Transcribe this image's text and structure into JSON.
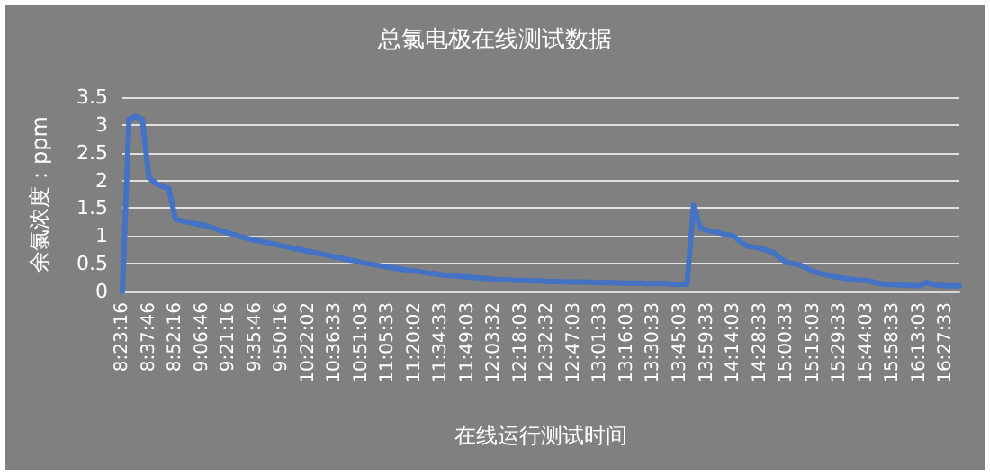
{
  "chart_data": {
    "type": "line",
    "title": "总氯电极在线测试数据",
    "xlabel": "在线运行测试时间",
    "ylabel": "余氯浓度：ppm",
    "categories": [
      "8:23:16",
      null,
      null,
      null,
      "8:37:46",
      null,
      null,
      null,
      "8:52:16",
      null,
      null,
      null,
      "9:06:46",
      null,
      null,
      null,
      "9:21:16",
      null,
      null,
      null,
      "9:35:46",
      null,
      null,
      null,
      "9:50:16",
      null,
      null,
      null,
      "10:22:02",
      null,
      null,
      null,
      "10:36:33",
      null,
      null,
      null,
      "10:51:03",
      null,
      null,
      null,
      "11:05:33",
      null,
      null,
      null,
      "11:20:02",
      null,
      null,
      null,
      "11:34:33",
      null,
      null,
      null,
      "11:49:03",
      null,
      null,
      null,
      "12:03:32",
      null,
      null,
      null,
      "12:18:03",
      null,
      null,
      null,
      "12:32:32",
      null,
      null,
      null,
      "12:47:03",
      null,
      null,
      null,
      "13:01:33",
      null,
      null,
      null,
      "13:16:03",
      null,
      null,
      null,
      "13:30:33",
      null,
      null,
      null,
      "13:45:03",
      null,
      null,
      null,
      "13:59:33",
      null,
      null,
      null,
      "14:14:03",
      null,
      null,
      null,
      "14:28:33",
      null,
      null,
      null,
      "15:00:33",
      null,
      null,
      null,
      "15:15:03",
      null,
      null,
      null,
      "15:29:33",
      null,
      null,
      null,
      "15:44:03",
      null,
      null,
      null,
      "15:58:33",
      null,
      null,
      null,
      "16:13:03",
      null,
      null,
      null,
      "16:27:33",
      null,
      null
    ],
    "series": [
      {
        "color": "#4472c4",
        "values": [
          0,
          3.1,
          3.15,
          3.1,
          2.05,
          1.95,
          1.9,
          1.85,
          1.3,
          1.27,
          1.25,
          1.22,
          1.2,
          1.17,
          1.13,
          1.09,
          1.05,
          1.02,
          0.98,
          0.95,
          0.92,
          0.9,
          0.87,
          0.85,
          0.82,
          0.8,
          0.77,
          0.75,
          0.72,
          0.7,
          0.67,
          0.65,
          0.62,
          0.6,
          0.57,
          0.55,
          0.52,
          0.5,
          0.48,
          0.46,
          0.44,
          0.42,
          0.4,
          0.38,
          0.37,
          0.35,
          0.33,
          0.32,
          0.3,
          0.29,
          0.28,
          0.27,
          0.26,
          0.25,
          0.24,
          0.23,
          0.22,
          0.21,
          0.21,
          0.2,
          0.2,
          0.2,
          0.19,
          0.19,
          0.18,
          0.18,
          0.18,
          0.17,
          0.17,
          0.17,
          0.17,
          0.16,
          0.16,
          0.16,
          0.16,
          0.15,
          0.15,
          0.15,
          0.15,
          0.14,
          0.14,
          0.14,
          0.14,
          0.13,
          0.13,
          0.13,
          1.55,
          1.15,
          1.1,
          1.08,
          1.05,
          1.02,
          1.0,
          0.9,
          0.82,
          0.8,
          0.78,
          0.74,
          0.7,
          0.6,
          0.52,
          0.5,
          0.48,
          0.42,
          0.36,
          0.33,
          0.3,
          0.27,
          0.25,
          0.23,
          0.22,
          0.2,
          0.2,
          0.17,
          0.14,
          0.13,
          0.12,
          0.12,
          0.11,
          0.11,
          0.1,
          0.16,
          0.13,
          0.11,
          0.1,
          0.1,
          0.1
        ]
      }
    ],
    "ylim": [
      0,
      3.5
    ],
    "yticks": [
      0,
      0.5,
      1,
      1.5,
      2,
      2.5,
      3,
      3.5
    ],
    "grid": "y",
    "marker": "none",
    "line_style": "solid"
  }
}
